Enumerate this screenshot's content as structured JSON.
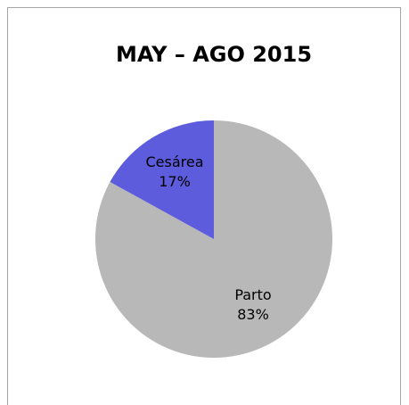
{
  "chart_data": {
    "type": "pie",
    "title": "MAY – AGO 2015",
    "categories": [
      "Parto",
      "Cesárea"
    ],
    "values": [
      83,
      17
    ],
    "value_labels": [
      "83%",
      "17%"
    ],
    "colors": [
      "#b8b8b8",
      "#5c5cdc"
    ]
  }
}
